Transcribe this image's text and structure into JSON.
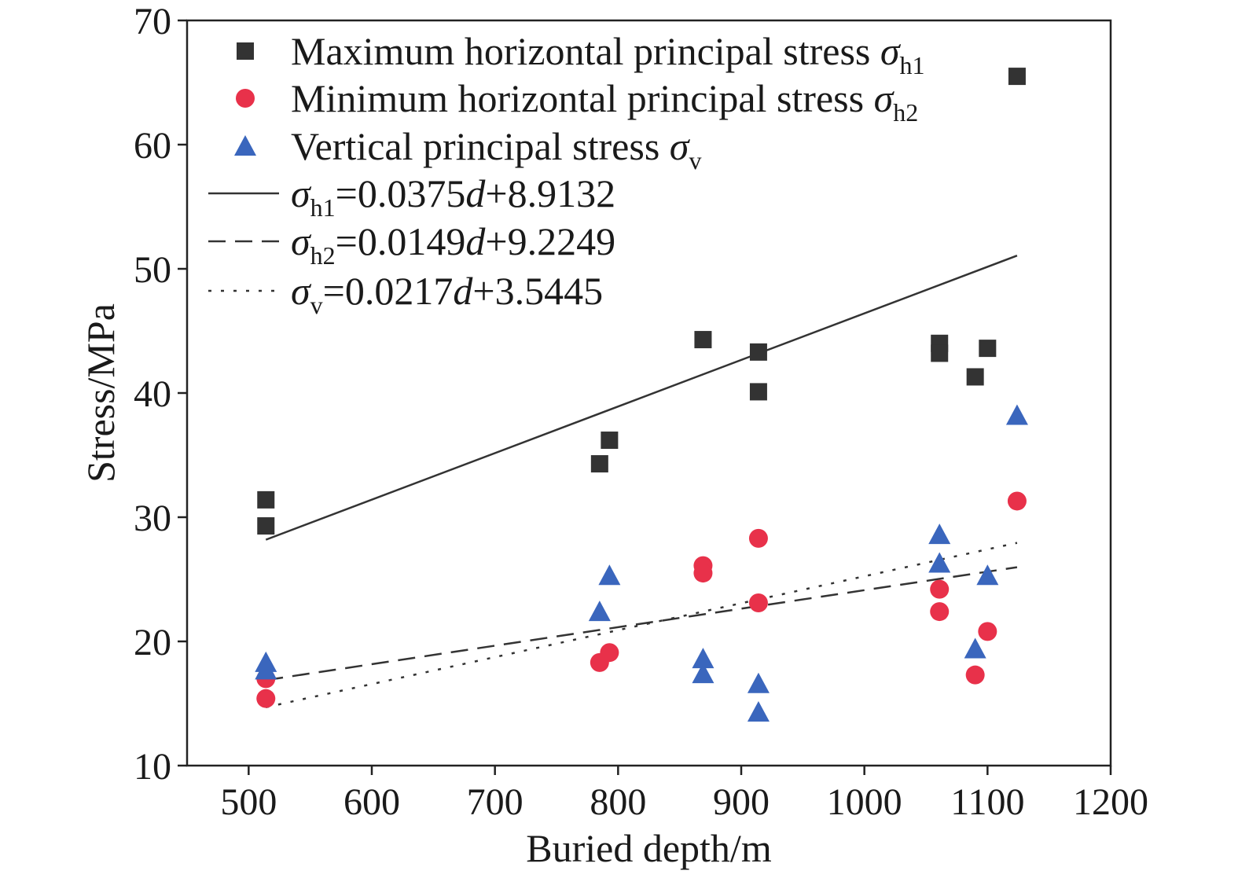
{
  "chart_data": {
    "type": "scatter",
    "xlabel": "Buried depth/m",
    "ylabel": "Stress/MPa",
    "xlim": [
      450,
      1200
    ],
    "ylim": [
      10,
      70
    ],
    "xticks": [
      500,
      600,
      700,
      800,
      900,
      1000,
      1100,
      1200
    ],
    "yticks": [
      10,
      20,
      30,
      40,
      50,
      60,
      70
    ],
    "grid": false,
    "legend_position": "top-left",
    "series": [
      {
        "key": "sh1",
        "name": "Maximum horizontal principal stress σh1",
        "name_main": "Maximum horizontal principal stress ",
        "name_symbol": "σ",
        "name_sub": "h1",
        "marker": "square",
        "color": "#333333",
        "points": [
          [
            514,
            31.4
          ],
          [
            514,
            29.3
          ],
          [
            785,
            34.3
          ],
          [
            793,
            36.2
          ],
          [
            869,
            44.3
          ],
          [
            914,
            43.3
          ],
          [
            914,
            40.1
          ],
          [
            1061,
            44.0
          ],
          [
            1061,
            43.2
          ],
          [
            1090,
            41.3
          ],
          [
            1100,
            43.6
          ],
          [
            1124,
            65.5
          ]
        ]
      },
      {
        "key": "sh2",
        "name": "Minimum horizontal principal stress σh2",
        "name_main": "Minimum horizontal principal stress ",
        "name_symbol": "σ",
        "name_sub": "h2",
        "marker": "circle",
        "color": "#e8314a",
        "points": [
          [
            514,
            17.0
          ],
          [
            514,
            15.4
          ],
          [
            785,
            18.3
          ],
          [
            793,
            19.1
          ],
          [
            869,
            26.1
          ],
          [
            869,
            25.5
          ],
          [
            914,
            28.3
          ],
          [
            914,
            23.1
          ],
          [
            1061,
            24.2
          ],
          [
            1061,
            22.4
          ],
          [
            1090,
            17.3
          ],
          [
            1100,
            20.8
          ],
          [
            1124,
            31.3
          ]
        ]
      },
      {
        "key": "sv",
        "name": "Vertical principal stress σv",
        "name_main": "Vertical principal stress ",
        "name_symbol": "σ",
        "name_sub": "v",
        "marker": "triangle",
        "color": "#3a66bd",
        "points": [
          [
            514,
            18.3
          ],
          [
            514,
            17.7
          ],
          [
            785,
            22.4
          ],
          [
            793,
            25.3
          ],
          [
            869,
            18.6
          ],
          [
            869,
            17.4
          ],
          [
            914,
            16.6
          ],
          [
            914,
            14.3
          ],
          [
            1061,
            28.6
          ],
          [
            1061,
            26.3
          ],
          [
            1090,
            19.4
          ],
          [
            1100,
            25.3
          ],
          [
            1124,
            38.2
          ]
        ]
      }
    ],
    "fits": [
      {
        "key": "fit-sh1",
        "label": "σh1=0.0375d+8.9132",
        "symbol": "σ",
        "sub": "h1",
        "eq_a": "=0.0375",
        "var": "d",
        "eq_b": "+8.9132",
        "slope": 0.0375,
        "intercept": 8.9132,
        "x_range": [
          514,
          1124
        ],
        "style": "solid",
        "color": "#333333"
      },
      {
        "key": "fit-sh2",
        "label": "σh2=0.0149d+9.2249",
        "symbol": "σ",
        "sub": "h2",
        "eq_a": "=0.0149",
        "var": "d",
        "eq_b": "+9.2249",
        "slope": 0.0149,
        "intercept": 9.2249,
        "x_range": [
          514,
          1124
        ],
        "style": "dashed",
        "color": "#333333"
      },
      {
        "key": "fit-sv",
        "label": "σv=0.0217d+3.5445",
        "symbol": "σ",
        "sub": "v",
        "eq_a": "=0.0217",
        "var": "d",
        "eq_b": "+3.5445",
        "slope": 0.0217,
        "intercept": 3.5445,
        "x_range": [
          514,
          1124
        ],
        "style": "dotted",
        "color": "#333333"
      }
    ]
  }
}
